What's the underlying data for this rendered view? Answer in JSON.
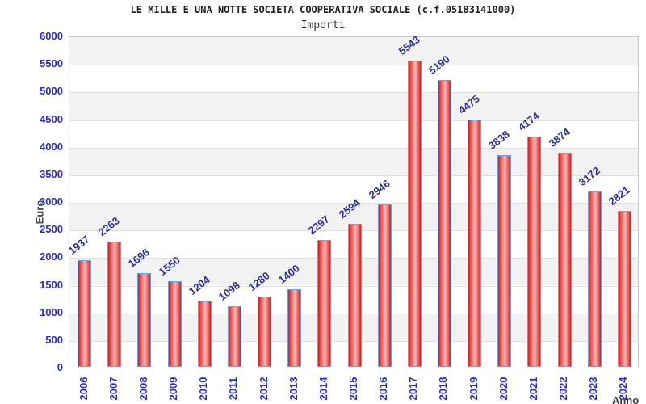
{
  "header": {
    "title": "LE MILLE E UNA NOTTE SOCIETA COOPERATIVA SOCIALE (c.f.05183141000)",
    "subtitle": "Importi"
  },
  "chart_data": {
    "type": "bar",
    "title": "LE MILLE E UNA NOTTE SOCIETA COOPERATIVA SOCIALE (c.f.05183141000)",
    "subtitle": "Importi",
    "xlabel": "Anno",
    "ylabel": "Euro",
    "categories": [
      "2006",
      "2007",
      "2008",
      "2009",
      "2010",
      "2011",
      "2012",
      "2013",
      "2014",
      "2015",
      "2016",
      "2017",
      "2018",
      "2019",
      "2020",
      "2021",
      "2022",
      "2023",
      "2024"
    ],
    "values": [
      1937,
      2263,
      1696,
      1550,
      1204,
      1098,
      1280,
      1400,
      2297,
      2594,
      2946,
      5543,
      5190,
      4475,
      3838,
      4174,
      3874,
      3172,
      2821
    ],
    "ylim": [
      0,
      6000
    ],
    "ytick_step": 500,
    "ytick_labels": [
      "0",
      "500",
      "1000",
      "1500",
      "2000",
      "2500",
      "3000",
      "3500",
      "4000",
      "4500",
      "5000",
      "5500",
      "6000"
    ],
    "grid": "horizontal, alternating shaded bands",
    "legend": "none",
    "colors": {
      "bar_fill_edge": "#cc2020",
      "bar_fill_center": "#f7b5b2",
      "bar_border": "#6fa0e0",
      "tick_label": "#2b2bd6",
      "value_label": "#30309a",
      "axis_title": "#4a4a4a",
      "band_shade": "#f2f2f2",
      "gridline": "#e0e0e0",
      "plot_border": "#c9c9c9",
      "background": "#ffffff"
    }
  }
}
